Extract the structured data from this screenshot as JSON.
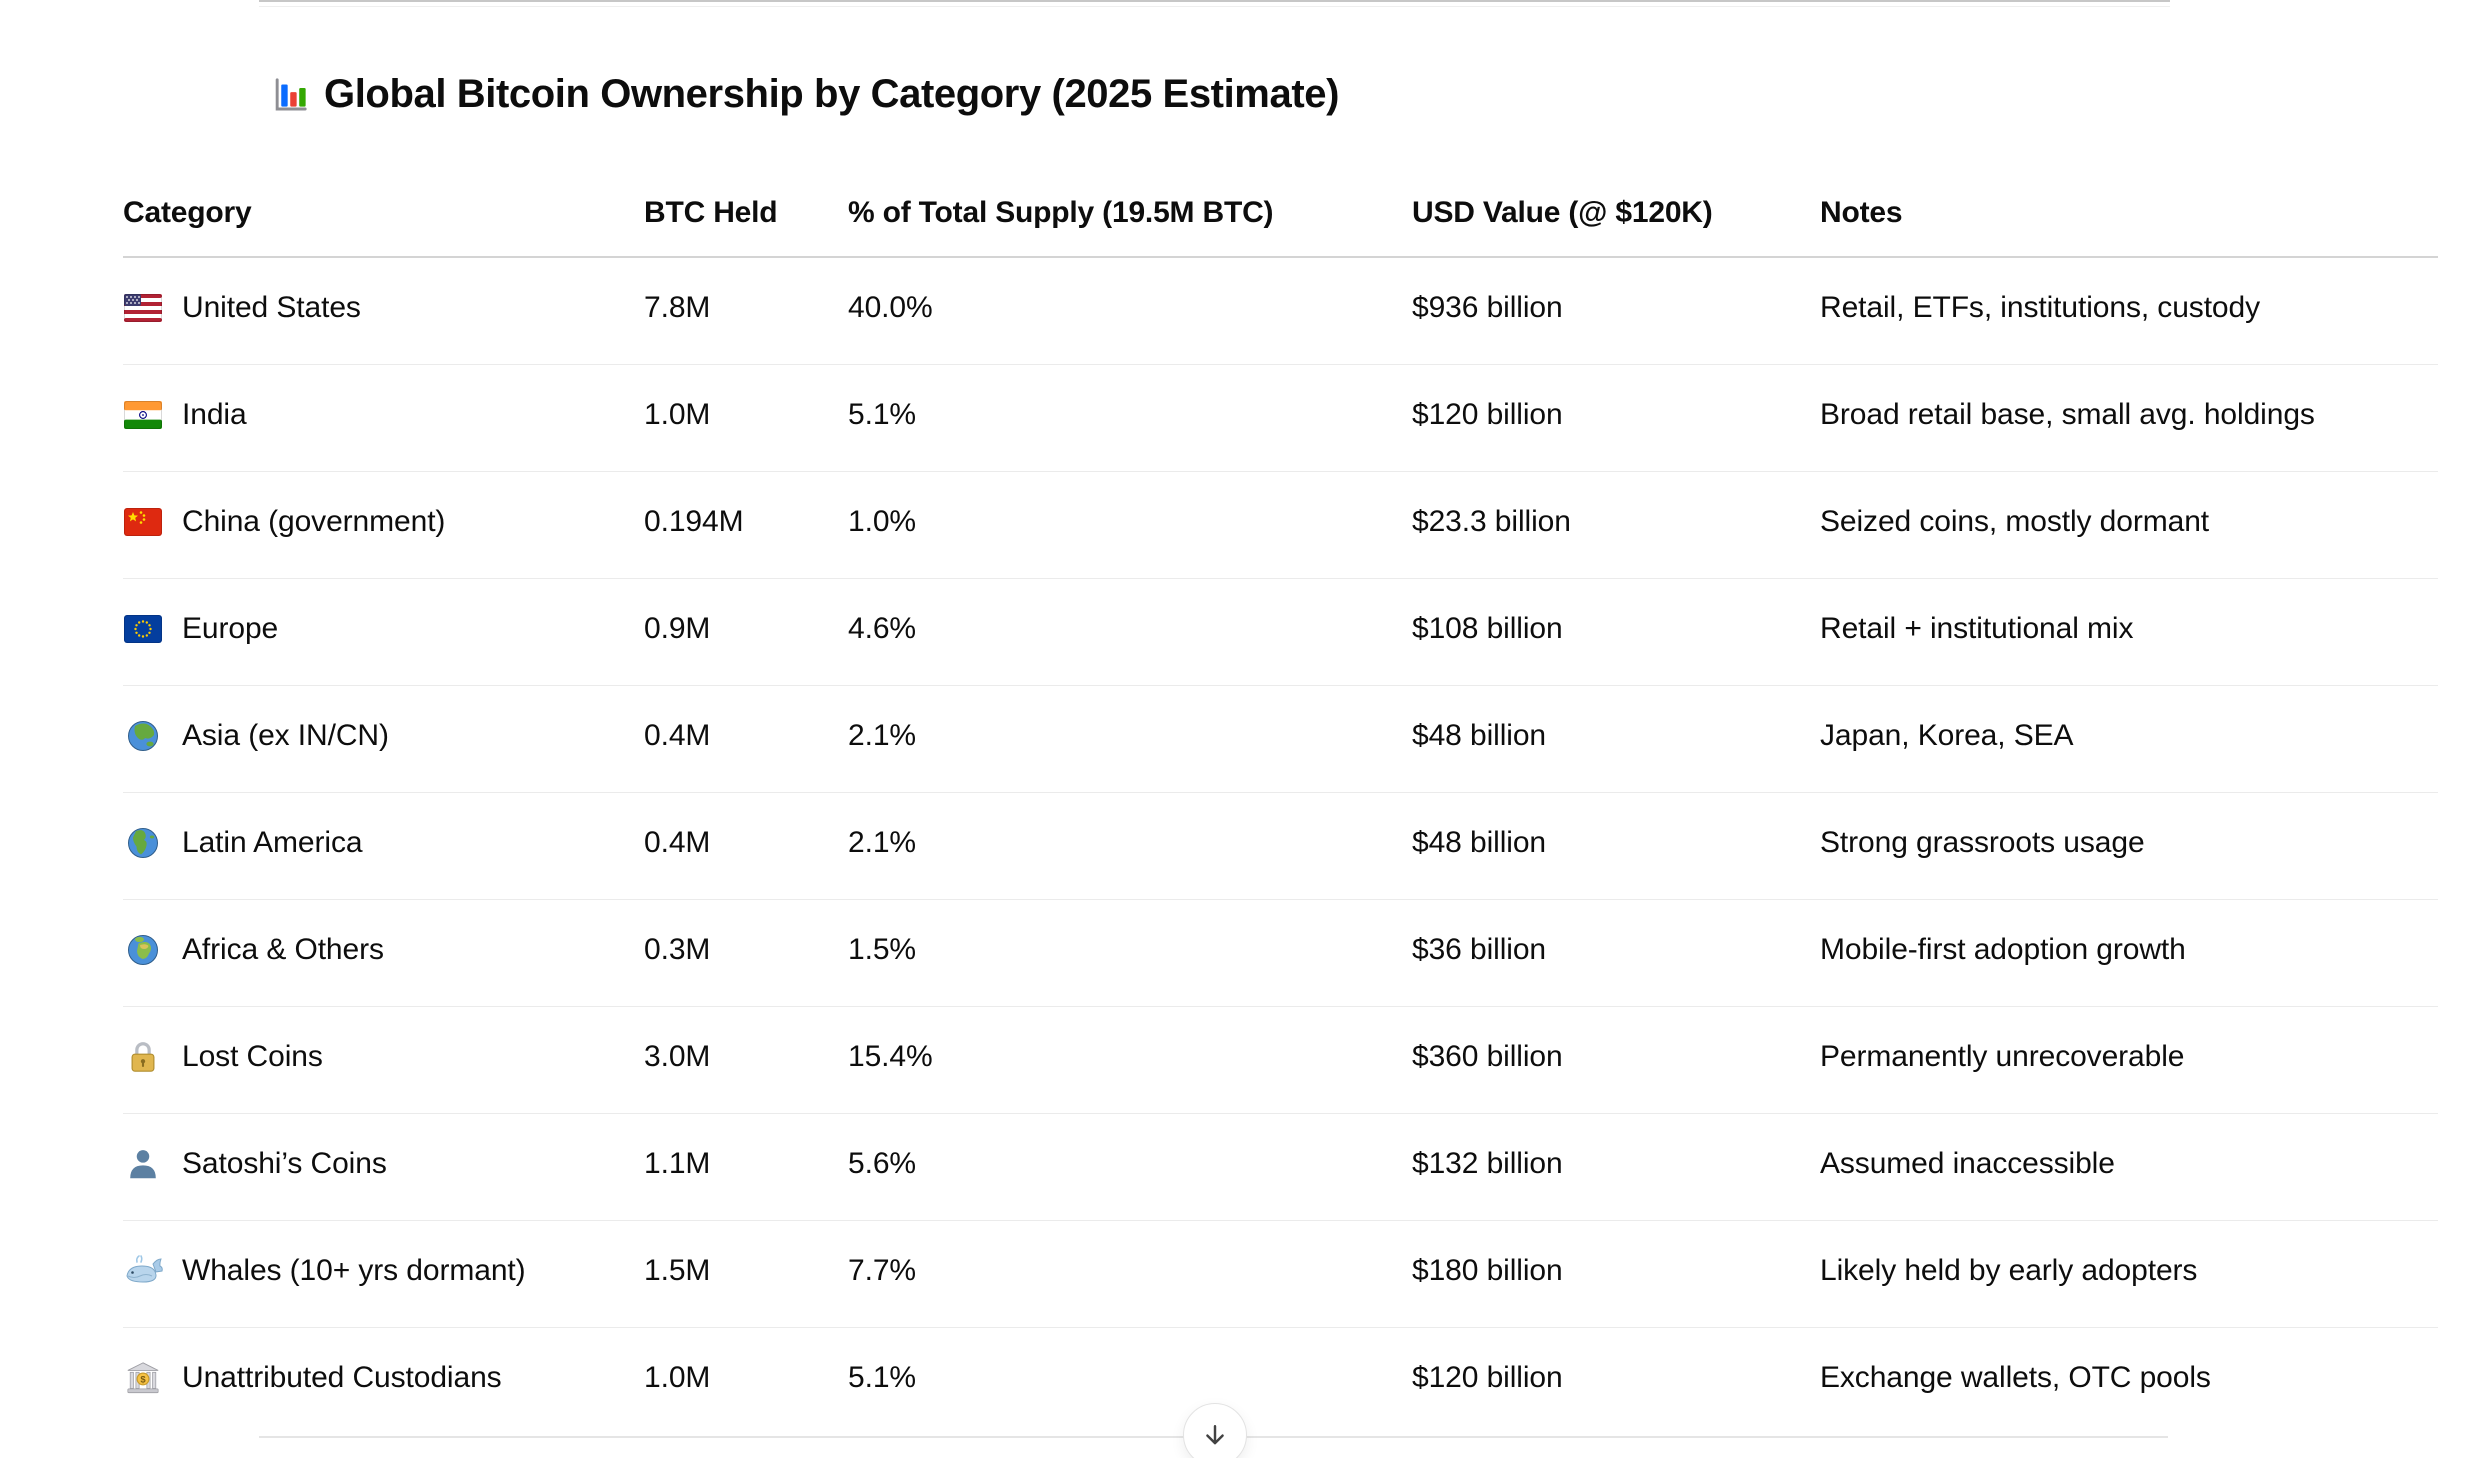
{
  "title": {
    "icon": "bar-chart-icon",
    "text": "Global Bitcoin Ownership by Category (2025 Estimate)"
  },
  "table": {
    "columns": {
      "category": "Category",
      "btc_held": "BTC Held",
      "pct_supply": "% of Total Supply (19.5M BTC)",
      "usd_value": "USD Value (@ $120K)",
      "notes": "Notes"
    },
    "rows": [
      {
        "icon": "us-flag-icon",
        "category": "United States",
        "btc_held": "7.8M",
        "pct_supply": "40.0%",
        "usd_value": "$936 billion",
        "notes": "Retail, ETFs, institutions, custody"
      },
      {
        "icon": "india-flag-icon",
        "category": "India",
        "btc_held": "1.0M",
        "pct_supply": "5.1%",
        "usd_value": "$120 billion",
        "notes": "Broad retail base, small avg. holdings"
      },
      {
        "icon": "china-flag-icon",
        "category": "China (government)",
        "btc_held": "0.194M",
        "pct_supply": "1.0%",
        "usd_value": "$23.3 billion",
        "notes": "Seized coins, mostly dormant"
      },
      {
        "icon": "eu-flag-icon",
        "category": "Europe",
        "btc_held": "0.9M",
        "pct_supply": "4.6%",
        "usd_value": "$108 billion",
        "notes": "Retail + institutional mix"
      },
      {
        "icon": "globe-asia-icon",
        "category": "Asia (ex IN/CN)",
        "btc_held": "0.4M",
        "pct_supply": "2.1%",
        "usd_value": "$48 billion",
        "notes": "Japan, Korea, SEA"
      },
      {
        "icon": "globe-americas-icon",
        "category": "Latin America",
        "btc_held": "0.4M",
        "pct_supply": "2.1%",
        "usd_value": "$48 billion",
        "notes": "Strong grassroots usage"
      },
      {
        "icon": "globe-africa-icon",
        "category": "Africa & Others",
        "btc_held": "0.3M",
        "pct_supply": "1.5%",
        "usd_value": "$36 billion",
        "notes": "Mobile-first adoption growth"
      },
      {
        "icon": "lock-icon",
        "category": "Lost Coins",
        "btc_held": "3.0M",
        "pct_supply": "15.4%",
        "usd_value": "$360 billion",
        "notes": "Permanently unrecoverable"
      },
      {
        "icon": "person-bust-icon",
        "category": "Satoshi’s Coins",
        "btc_held": "1.1M",
        "pct_supply": "5.6%",
        "usd_value": "$132 billion",
        "notes": "Assumed inaccessible"
      },
      {
        "icon": "whale-icon",
        "category": "Whales (10+ yrs dormant)",
        "btc_held": "1.5M",
        "pct_supply": "7.7%",
        "usd_value": "$180 billion",
        "notes": "Likely held by early adopters"
      },
      {
        "icon": "bank-icon",
        "category": "Unattributed Custodians",
        "btc_held": "1.0M",
        "pct_supply": "5.1%",
        "usd_value": "$120 billion",
        "notes": "Exchange wallets, OTC pools"
      }
    ]
  },
  "scroll_button": {
    "icon": "arrow-down-icon"
  },
  "colors": {
    "page_background": "#ffffff",
    "text": "#0d0d0d",
    "header_divider": "#d4d4d4",
    "row_divider": "#ebebeb",
    "top_divider": "#c7c7c7",
    "bottom_divider": "#e5e5e5"
  }
}
